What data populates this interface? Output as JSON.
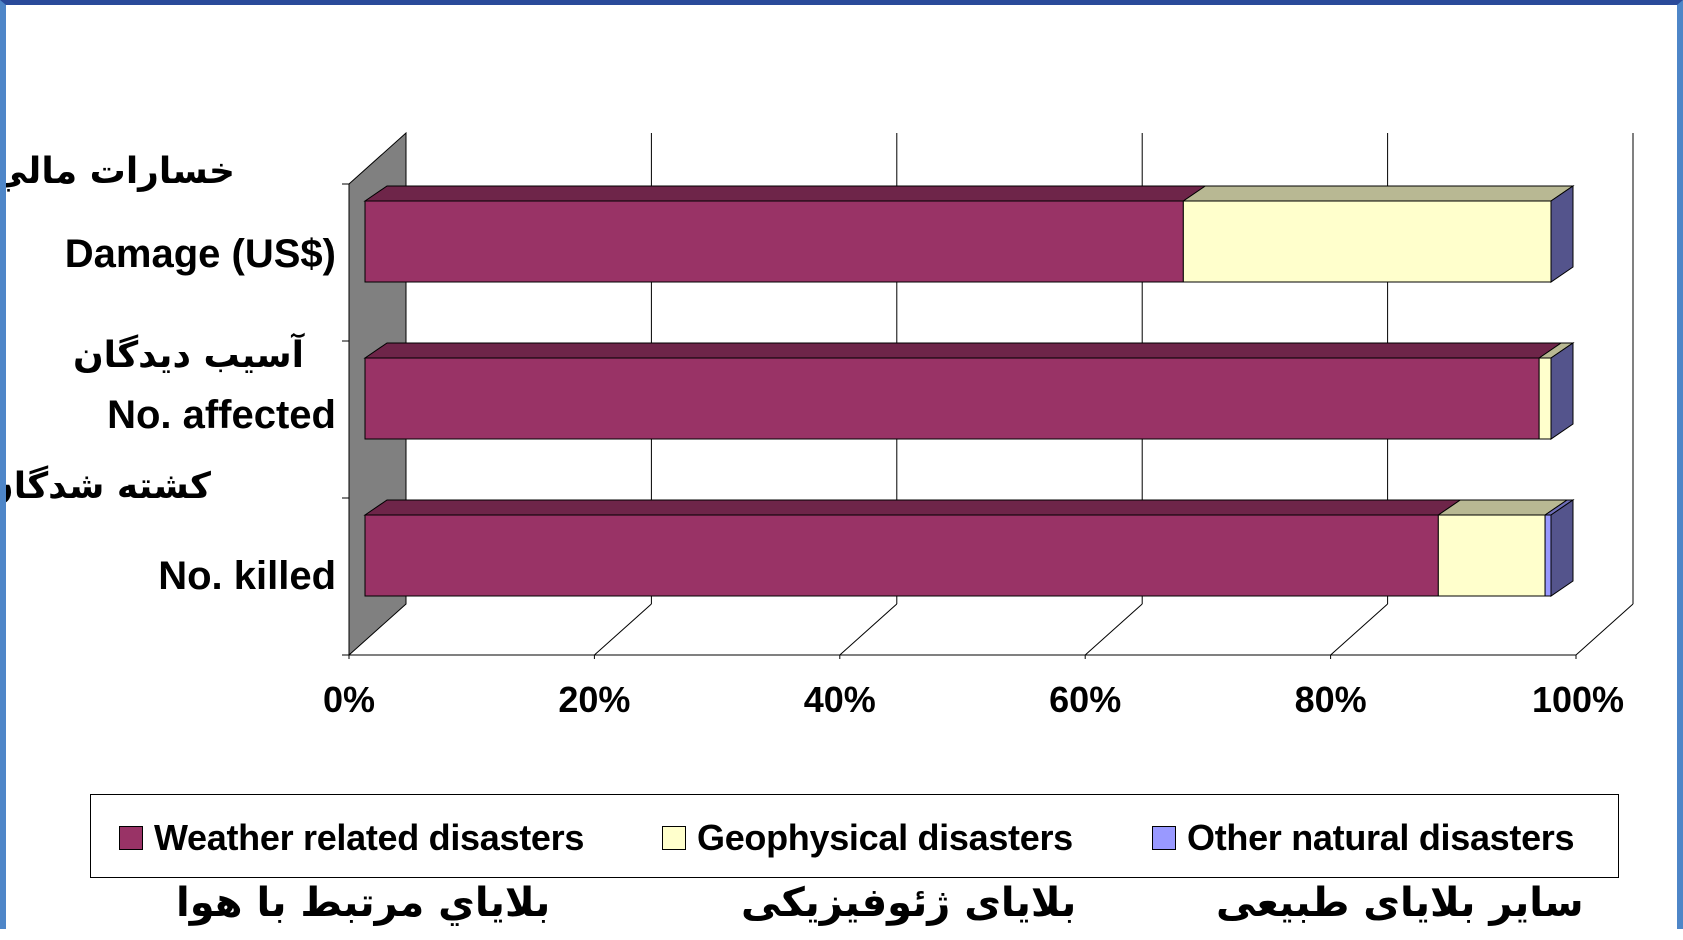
{
  "chart_data": {
    "type": "bar",
    "stacked": true,
    "percent_stacked": true,
    "orientation": "horizontal",
    "three_d": true,
    "categories": [
      {
        "label": "Damage (US$)",
        "label_fa": "خسارات مالي"
      },
      {
        "label": "No. affected",
        "label_fa": "آسيب ديدگان"
      },
      {
        "label": "No. killed",
        "label_fa": "كشته شدگان"
      }
    ],
    "series": [
      {
        "name": "Weather related disasters",
        "name_fa": "بلاياي مرتبط با هوا",
        "color": "#993366",
        "values": [
          69,
          99,
          90.5
        ]
      },
      {
        "name": "Geophysical  disasters",
        "name_fa": "بلایای ژئوفیزیکی",
        "color": "#ffffcc",
        "values": [
          31,
          1,
          9
        ]
      },
      {
        "name": "Other natural disasters",
        "name_fa": "سایر بلایای طبیعی",
        "color": "#9999ff",
        "values": [
          0,
          0,
          0.5
        ]
      }
    ],
    "x_ticks": [
      "0%",
      "20%",
      "40%",
      "60%",
      "80%",
      "100%"
    ],
    "xlim": [
      0,
      100
    ],
    "grid": true,
    "legend_position": "bottom"
  }
}
